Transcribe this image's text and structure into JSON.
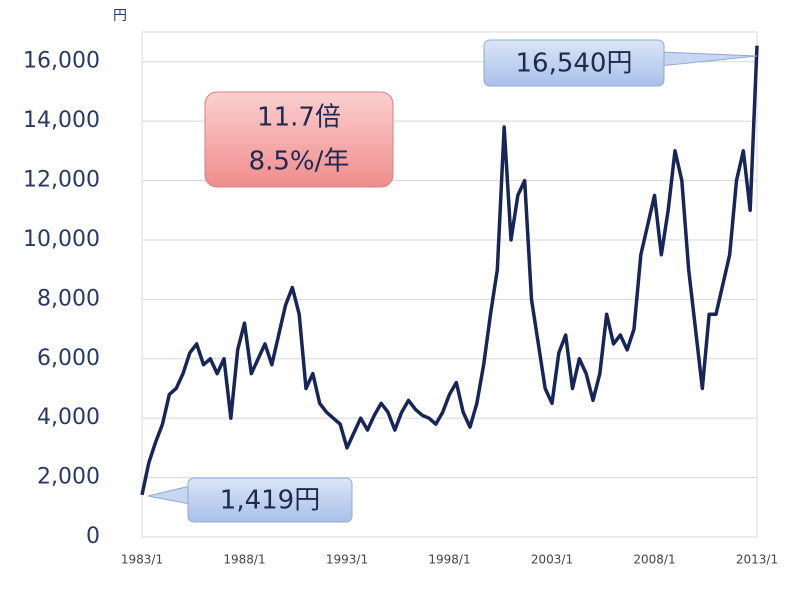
{
  "chart_data": {
    "type": "line",
    "y_unit": "円",
    "annotations": [
      "11.7倍",
      "8.5%/年",
      "1,419円",
      "16,540円"
    ],
    "x": [
      "1983/1",
      "1983/5",
      "1983/9",
      "1984/1",
      "1984/5",
      "1984/9",
      "1985/1",
      "1985/5",
      "1985/9",
      "1986/1",
      "1986/5",
      "1986/9",
      "1987/1",
      "1987/5",
      "1987/9",
      "1988/1",
      "1988/5",
      "1988/9",
      "1989/1",
      "1989/5",
      "1989/9",
      "1990/1",
      "1990/5",
      "1990/9",
      "1991/1",
      "1991/5",
      "1991/9",
      "1992/1",
      "1992/5",
      "1992/9",
      "1993/1",
      "1993/5",
      "1993/9",
      "1994/1",
      "1994/5",
      "1994/9",
      "1995/1",
      "1995/5",
      "1995/9",
      "1996/1",
      "1996/5",
      "1996/9",
      "1997/1",
      "1997/5",
      "1997/9",
      "1998/1",
      "1998/5",
      "1998/9",
      "1999/1",
      "1999/5",
      "1999/9",
      "2000/1",
      "2000/5",
      "2000/9",
      "2001/1",
      "2001/5",
      "2001/9",
      "2002/1",
      "2002/5",
      "2002/9",
      "2003/1",
      "2003/5",
      "2003/9",
      "2004/1",
      "2004/5",
      "2004/9",
      "2005/1",
      "2005/5",
      "2005/9",
      "2006/1",
      "2006/5",
      "2006/9",
      "2007/1",
      "2007/5",
      "2007/9",
      "2008/1",
      "2008/5",
      "2008/9",
      "2009/1",
      "2009/5",
      "2009/9",
      "2010/1",
      "2010/5",
      "2010/9",
      "2011/1",
      "2011/5",
      "2011/9",
      "2012/1",
      "2012/5",
      "2012/9",
      "2013/1"
    ],
    "series": [
      {
        "color": "#16265a",
        "values": [
          1419,
          2500,
          3200,
          3800,
          4800,
          5000,
          5500,
          6200,
          6500,
          5800,
          6000,
          5500,
          6000,
          4000,
          6300,
          7200,
          5500,
          6000,
          6500,
          5800,
          6800,
          7800,
          8400,
          7500,
          5000,
          5500,
          4500,
          4200,
          4000,
          3800,
          3000,
          3500,
          4000,
          3600,
          4100,
          4500,
          4200,
          3600,
          4200,
          4600,
          4300,
          4100,
          4000,
          3800,
          4200,
          4800,
          5200,
          4200,
          3700,
          4500,
          5800,
          7500,
          9000,
          13800,
          10000,
          11500,
          12000,
          8000,
          6500,
          5000,
          4500,
          6200,
          6800,
          5000,
          6000,
          5500,
          4600,
          5500,
          7500,
          6500,
          6800,
          6300,
          7000,
          9500,
          10500,
          11500,
          9500,
          11000,
          13000,
          12000,
          9000,
          7000,
          5000,
          7500,
          7500,
          8500,
          9500,
          12000,
          13000,
          11000,
          16540
        ]
      }
    ],
    "xlim": [
      "1983/1",
      "2013/1"
    ],
    "xticks": [
      "1983/1",
      "1988/1",
      "1993/1",
      "1998/1",
      "2003/1",
      "2008/1",
      "2013/1"
    ],
    "ylim": [
      0,
      17000
    ],
    "yticks": [
      0,
      {
        "value": 2000,
        "label": "2,000"
      },
      {
        "value": 4000,
        "label": "4,000"
      },
      {
        "value": 6000,
        "label": "6,000"
      },
      {
        "value": 8000,
        "label": "8,000"
      },
      {
        "value": 10000,
        "label": "10,000"
      },
      {
        "value": 12000,
        "label": "12,000"
      },
      {
        "value": 14000,
        "label": "14,000"
      },
      {
        "value": 16000,
        "label": "16,000"
      }
    ],
    "grid": true
  }
}
